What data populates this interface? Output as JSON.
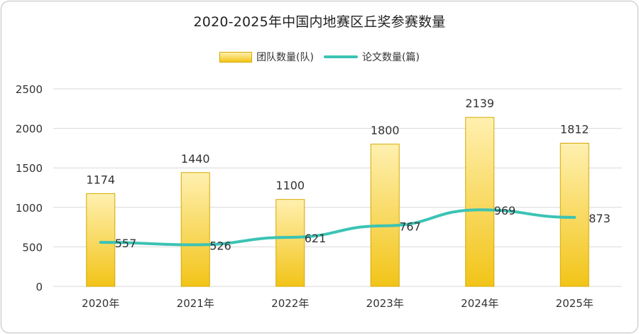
{
  "chart_data": {
    "type": "bar",
    "title": "2020-2025年中国内地赛区丘奖参赛数量",
    "categories": [
      "2020年",
      "2021年",
      "2022年",
      "2023年",
      "2024年",
      "2025年"
    ],
    "series": [
      {
        "name": "团队数量(队)",
        "type": "bar",
        "values": [
          1174,
          1440,
          1100,
          1800,
          2139,
          1812
        ]
      },
      {
        "name": "论文数量(篇)",
        "type": "line",
        "values": [
          557,
          526,
          621,
          767,
          969,
          873
        ]
      }
    ],
    "y_ticks": [
      "0",
      "500",
      "1000",
      "1500",
      "2000",
      "2500"
    ],
    "ylim": [
      0,
      2500
    ],
    "grid": true,
    "legend": "top-center",
    "colors": {
      "bar_top": "#fff0b0",
      "bar_bottom": "#f2c418",
      "bar_border": "#d4a800",
      "line": "#3cc3b4",
      "grid": "#d9d9d9"
    }
  }
}
